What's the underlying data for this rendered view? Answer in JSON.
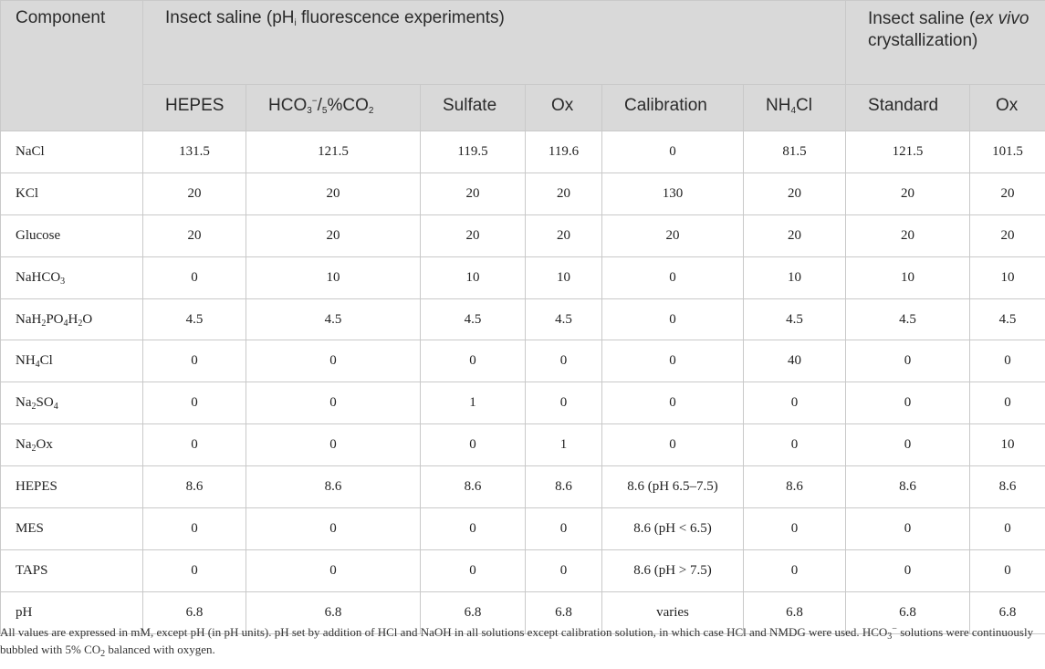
{
  "header": {
    "component": "Component",
    "group_fluorescence": {
      "pre": "Insect saline (pH",
      "sub": "i",
      "post": " fluorescence experiments)"
    },
    "group_exvivo": {
      "pre": "Insect saline (",
      "italic": "ex vivo",
      "post": " crystallization)"
    },
    "columns": [
      {
        "id": "hepes",
        "label": "HEPES"
      },
      {
        "id": "hco3",
        "label": "HCO3⁻/5%CO2"
      },
      {
        "id": "sulfate",
        "label": "Sulfate"
      },
      {
        "id": "ox",
        "label": "Ox"
      },
      {
        "id": "calibration",
        "label": "Calibration"
      },
      {
        "id": "nh4cl",
        "label": "NH4Cl"
      },
      {
        "id": "standard",
        "label": "Standard"
      },
      {
        "id": "ox2",
        "label": "Ox"
      }
    ]
  },
  "rows": [
    {
      "component": "NaCl",
      "values": [
        "131.5",
        "121.5",
        "119.5",
        "119.6",
        "0",
        "81.5",
        "121.5",
        "101.5"
      ]
    },
    {
      "component": "KCl",
      "values": [
        "20",
        "20",
        "20",
        "20",
        "130",
        "20",
        "20",
        "20"
      ]
    },
    {
      "component": "Glucose",
      "values": [
        "20",
        "20",
        "20",
        "20",
        "20",
        "20",
        "20",
        "20"
      ]
    },
    {
      "component": "NaHCO3",
      "values": [
        "0",
        "10",
        "10",
        "10",
        "0",
        "10",
        "10",
        "10"
      ]
    },
    {
      "component": "NaH2PO4H2O",
      "values": [
        "4.5",
        "4.5",
        "4.5",
        "4.5",
        "0",
        "4.5",
        "4.5",
        "4.5"
      ]
    },
    {
      "component": "NH4Cl",
      "values": [
        "0",
        "0",
        "0",
        "0",
        "0",
        "40",
        "0",
        "0"
      ]
    },
    {
      "component": "Na2SO4",
      "values": [
        "0",
        "0",
        "1",
        "0",
        "0",
        "0",
        "0",
        "0"
      ]
    },
    {
      "component": "Na2Ox",
      "values": [
        "0",
        "0",
        "0",
        "1",
        "0",
        "0",
        "0",
        "10"
      ]
    },
    {
      "component": "HEPES",
      "values": [
        "8.6",
        "8.6",
        "8.6",
        "8.6",
        "8.6 (pH 6.5–7.5)",
        "8.6",
        "8.6",
        "8.6"
      ]
    },
    {
      "component": "MES",
      "values": [
        "0",
        "0",
        "0",
        "0",
        "8.6 (pH < 6.5)",
        "0",
        "0",
        "0"
      ]
    },
    {
      "component": "TAPS",
      "values": [
        "0",
        "0",
        "0",
        "0",
        "8.6 (pH > 7.5)",
        "0",
        "0",
        "0"
      ]
    },
    {
      "component": "pH",
      "values": [
        "6.8",
        "6.8",
        "6.8",
        "6.8",
        "varies",
        "6.8",
        "6.8",
        "6.8"
      ]
    }
  ],
  "footnote": {
    "part1": "All values are expressed in mM, except pH (in pH units). pH set by addition of HCl and NaOH in all solutions except calibration solution, in which case HCl and NMDG were used. HCO",
    "part2": " solutions were continuously bubbled with 5% CO",
    "part3": " balanced with oxygen."
  }
}
